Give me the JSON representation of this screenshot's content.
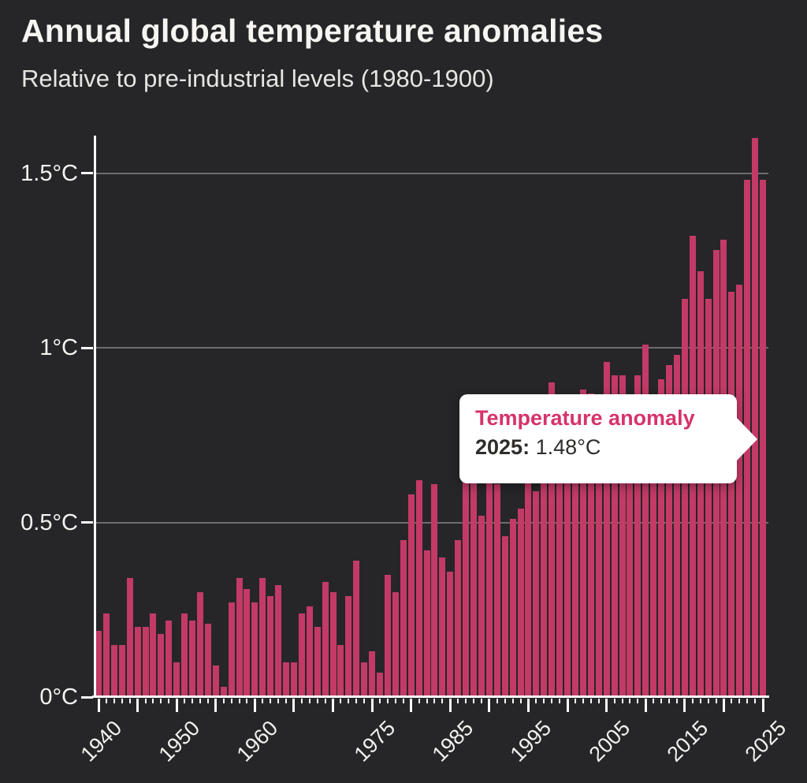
{
  "header": {
    "title": "Annual global temperature anomalies",
    "subtitle": "Relative to pre-industrial levels (1980-1900)"
  },
  "tooltip": {
    "title": "Temperature anomaly",
    "year_label": "2025:",
    "value": "1.48°C"
  },
  "chart_data": {
    "type": "bar",
    "title": "Annual global temperature anomalies",
    "subtitle": "Relative to pre-industrial levels (1980-1900)",
    "unit": "°C",
    "ylim": [
      0,
      1.6
    ],
    "grid": "horizontal-gridlines-at-0.5-1.0-1.5",
    "legend": "none",
    "years": [
      1940,
      1941,
      1942,
      1943,
      1944,
      1945,
      1946,
      1947,
      1948,
      1949,
      1950,
      1951,
      1952,
      1953,
      1954,
      1955,
      1956,
      1957,
      1958,
      1959,
      1960,
      1961,
      1962,
      1963,
      1964,
      1965,
      1966,
      1967,
      1968,
      1969,
      1970,
      1971,
      1972,
      1973,
      1974,
      1975,
      1976,
      1977,
      1978,
      1979,
      1980,
      1981,
      1982,
      1983,
      1984,
      1985,
      1986,
      1987,
      1988,
      1989,
      1990,
      1991,
      1992,
      1993,
      1994,
      1995,
      1996,
      1997,
      1998,
      1999,
      2000,
      2001,
      2002,
      2003,
      2004,
      2005,
      2006,
      2007,
      2008,
      2009,
      2010,
      2011,
      2012,
      2013,
      2014,
      2015,
      2016,
      2017,
      2018,
      2019,
      2020,
      2021,
      2022,
      2023,
      2024,
      2025
    ],
    "values": [
      0.19,
      0.24,
      0.15,
      0.15,
      0.34,
      0.2,
      0.2,
      0.24,
      0.18,
      0.22,
      0.1,
      0.24,
      0.22,
      0.3,
      0.21,
      0.09,
      0.03,
      0.27,
      0.34,
      0.31,
      0.27,
      0.34,
      0.29,
      0.32,
      0.1,
      0.1,
      0.24,
      0.26,
      0.2,
      0.33,
      0.3,
      0.15,
      0.29,
      0.39,
      0.1,
      0.13,
      0.07,
      0.35,
      0.3,
      0.45,
      0.58,
      0.62,
      0.42,
      0.61,
      0.4,
      0.36,
      0.45,
      0.62,
      0.62,
      0.52,
      0.62,
      0.61,
      0.46,
      0.51,
      0.54,
      0.66,
      0.59,
      0.72,
      0.9,
      0.66,
      0.66,
      0.78,
      0.88,
      0.87,
      0.8,
      0.96,
      0.92,
      0.92,
      0.79,
      0.92,
      1.01,
      0.78,
      0.91,
      0.95,
      0.98,
      1.14,
      1.32,
      1.22,
      1.14,
      1.28,
      1.31,
      1.16,
      1.18,
      1.48,
      1.6,
      1.48
    ],
    "yticks": [
      {
        "value": 0,
        "label": "0°C"
      },
      {
        "value": 0.5,
        "label": "0.5°C"
      },
      {
        "value": 1,
        "label": "1°C"
      },
      {
        "value": 1.5,
        "label": "1.5°C"
      }
    ],
    "xticks_major_every_years": 5,
    "xtick_labels": [
      "1940",
      "1950",
      "1960",
      "1975",
      "1985",
      "1995",
      "2005",
      "2015",
      "2025"
    ],
    "highlighted_year": 2025,
    "highlighted_value": "1.48°C",
    "colors": {
      "background": "#262629",
      "bar": "#c33a66",
      "accent": "#d6336b",
      "gridline": "#6d6d6e",
      "axis": "#fbfbfa",
      "title_text": "#f6f5f2",
      "subtitle_text": "#e6e5e1",
      "tick_text": "#f3f2ef"
    }
  }
}
